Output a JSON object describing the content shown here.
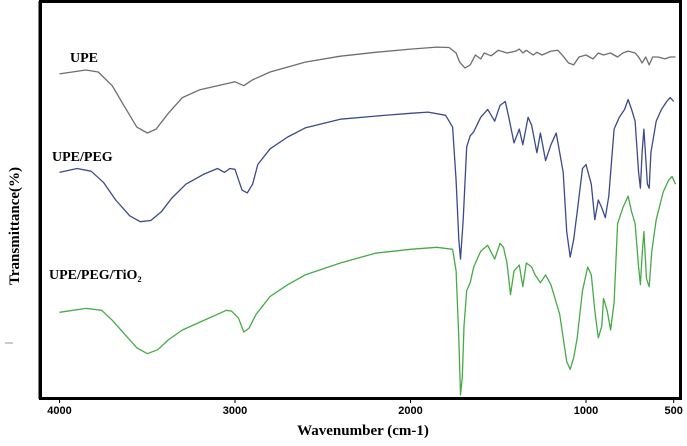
{
  "chart_data": {
    "type": "line",
    "title": "",
    "xlabel": "Wavenumber (cm-1)",
    "ylabel": "Transmittance(%)",
    "x_reversed": true,
    "xlim": [
      4100,
      470
    ],
    "ylim": [
      0,
      100
    ],
    "xticks": [
      {
        "value": 4000,
        "label": "4000"
      },
      {
        "value": 3000,
        "label": "3000"
      },
      {
        "value": 2000,
        "label": "2000"
      },
      {
        "value": 1000,
        "label": "1000"
      },
      {
        "value": 500,
        "label": "500"
      }
    ],
    "grid": false,
    "series": [
      {
        "name": "UPE",
        "color": "#6e6e6e",
        "points": [
          [
            4000,
            82
          ],
          [
            3850,
            83
          ],
          [
            3780,
            82.5
          ],
          [
            3700,
            79
          ],
          [
            3620,
            73
          ],
          [
            3560,
            68.5
          ],
          [
            3500,
            67
          ],
          [
            3450,
            68
          ],
          [
            3380,
            72
          ],
          [
            3300,
            76
          ],
          [
            3200,
            78
          ],
          [
            3100,
            79
          ],
          [
            3000,
            80
          ],
          [
            2950,
            79
          ],
          [
            2900,
            80.5
          ],
          [
            2800,
            82.5
          ],
          [
            2600,
            85
          ],
          [
            2400,
            86.5
          ],
          [
            2200,
            87.5
          ],
          [
            2000,
            88.3
          ],
          [
            1850,
            88.8
          ],
          [
            1780,
            88.7
          ],
          [
            1740,
            87.3
          ],
          [
            1720,
            85
          ],
          [
            1690,
            83.5
          ],
          [
            1660,
            84.3
          ],
          [
            1630,
            86.8
          ],
          [
            1600,
            85.8
          ],
          [
            1580,
            87.3
          ],
          [
            1540,
            86.6
          ],
          [
            1500,
            88
          ],
          [
            1450,
            87.3
          ],
          [
            1400,
            87.8
          ],
          [
            1380,
            88.3
          ],
          [
            1360,
            87.3
          ],
          [
            1340,
            88
          ],
          [
            1300,
            86.8
          ],
          [
            1280,
            87.5
          ],
          [
            1250,
            86.8
          ],
          [
            1200,
            87.8
          ],
          [
            1160,
            88
          ],
          [
            1130,
            86.5
          ],
          [
            1100,
            84.8
          ],
          [
            1070,
            84.3
          ],
          [
            1040,
            86.3
          ],
          [
            1000,
            86.8
          ],
          [
            960,
            85.8
          ],
          [
            930,
            87.3
          ],
          [
            900,
            86.8
          ],
          [
            860,
            87.3
          ],
          [
            820,
            86.3
          ],
          [
            790,
            87.3
          ],
          [
            760,
            87.8
          ],
          [
            720,
            87.3
          ],
          [
            700,
            86.3
          ],
          [
            680,
            84.8
          ],
          [
            660,
            86.3
          ],
          [
            640,
            84.3
          ],
          [
            620,
            86.3
          ],
          [
            590,
            86.3
          ],
          [
            550,
            85.8
          ],
          [
            520,
            86.3
          ],
          [
            490,
            86.3
          ]
        ]
      },
      {
        "name": "UPE/PEG",
        "color": "#3c4a8c",
        "points": [
          [
            4000,
            57
          ],
          [
            3900,
            58
          ],
          [
            3820,
            57.3
          ],
          [
            3750,
            54.5
          ],
          [
            3680,
            50
          ],
          [
            3600,
            46
          ],
          [
            3540,
            44.5
          ],
          [
            3480,
            44.8
          ],
          [
            3420,
            47
          ],
          [
            3360,
            50.5
          ],
          [
            3280,
            54
          ],
          [
            3180,
            56.5
          ],
          [
            3100,
            58
          ],
          [
            3060,
            57
          ],
          [
            3030,
            58
          ],
          [
            3000,
            57.8
          ],
          [
            2960,
            52.5
          ],
          [
            2930,
            51.8
          ],
          [
            2900,
            54
          ],
          [
            2870,
            59
          ],
          [
            2800,
            63
          ],
          [
            2700,
            66
          ],
          [
            2600,
            68.3
          ],
          [
            2400,
            70.5
          ],
          [
            2200,
            71.3
          ],
          [
            2000,
            72
          ],
          [
            1900,
            72.3
          ],
          [
            1800,
            71.5
          ],
          [
            1760,
            68.5
          ],
          [
            1740,
            55
          ],
          [
            1725,
            40
          ],
          [
            1715,
            35
          ],
          [
            1700,
            45
          ],
          [
            1680,
            63.5
          ],
          [
            1660,
            66.3
          ],
          [
            1640,
            67.3
          ],
          [
            1600,
            71
          ],
          [
            1560,
            73
          ],
          [
            1520,
            70
          ],
          [
            1490,
            74
          ],
          [
            1460,
            75
          ],
          [
            1440,
            71
          ],
          [
            1410,
            64.5
          ],
          [
            1380,
            68
          ],
          [
            1360,
            64
          ],
          [
            1330,
            71
          ],
          [
            1310,
            69
          ],
          [
            1280,
            62
          ],
          [
            1260,
            67
          ],
          [
            1230,
            60
          ],
          [
            1200,
            64
          ],
          [
            1170,
            67
          ],
          [
            1130,
            57
          ],
          [
            1110,
            42
          ],
          [
            1090,
            35.5
          ],
          [
            1070,
            40
          ],
          [
            1050,
            47
          ],
          [
            1020,
            58
          ],
          [
            1000,
            59
          ],
          [
            970,
            54
          ],
          [
            950,
            45
          ],
          [
            930,
            50
          ],
          [
            910,
            48
          ],
          [
            890,
            45.5
          ],
          [
            870,
            51
          ],
          [
            840,
            68
          ],
          [
            810,
            71
          ],
          [
            780,
            73
          ],
          [
            760,
            75.5
          ],
          [
            740,
            73
          ],
          [
            720,
            70
          ],
          [
            700,
            57
          ],
          [
            690,
            53
          ],
          [
            680,
            62
          ],
          [
            670,
            68
          ],
          [
            650,
            54
          ],
          [
            640,
            53
          ],
          [
            630,
            62
          ],
          [
            600,
            70
          ],
          [
            570,
            73
          ],
          [
            540,
            75
          ],
          [
            520,
            76
          ],
          [
            500,
            75
          ]
        ]
      },
      {
        "name": "UPE/PEG/TiO₂",
        "color": "#46aa46",
        "points": [
          [
            4000,
            21.5
          ],
          [
            3850,
            22.5
          ],
          [
            3760,
            22
          ],
          [
            3700,
            19.5
          ],
          [
            3620,
            15.5
          ],
          [
            3560,
            12.5
          ],
          [
            3500,
            11
          ],
          [
            3440,
            12
          ],
          [
            3380,
            14.5
          ],
          [
            3300,
            17
          ],
          [
            3200,
            19
          ],
          [
            3100,
            21
          ],
          [
            3050,
            22
          ],
          [
            3020,
            21.8
          ],
          [
            2980,
            20
          ],
          [
            2950,
            16.5
          ],
          [
            2920,
            17.5
          ],
          [
            2880,
            21
          ],
          [
            2800,
            25.5
          ],
          [
            2700,
            28.5
          ],
          [
            2600,
            31
          ],
          [
            2400,
            34
          ],
          [
            2200,
            36.5
          ],
          [
            2000,
            37.5
          ],
          [
            1850,
            38
          ],
          [
            1760,
            37.5
          ],
          [
            1740,
            32
          ],
          [
            1725,
            15
          ],
          [
            1715,
            0.5
          ],
          [
            1705,
            5
          ],
          [
            1695,
            18
          ],
          [
            1680,
            27
          ],
          [
            1660,
            29
          ],
          [
            1640,
            33
          ],
          [
            1600,
            37
          ],
          [
            1560,
            38.5
          ],
          [
            1520,
            35
          ],
          [
            1490,
            39
          ],
          [
            1470,
            38
          ],
          [
            1450,
            34
          ],
          [
            1430,
            26
          ],
          [
            1410,
            32
          ],
          [
            1380,
            33.5
          ],
          [
            1360,
            28
          ],
          [
            1340,
            34
          ],
          [
            1310,
            33
          ],
          [
            1290,
            31
          ],
          [
            1260,
            29
          ],
          [
            1230,
            31
          ],
          [
            1200,
            28.5
          ],
          [
            1150,
            21
          ],
          [
            1110,
            9
          ],
          [
            1090,
            7
          ],
          [
            1070,
            10
          ],
          [
            1050,
            15
          ],
          [
            1020,
            27
          ],
          [
            990,
            33
          ],
          [
            970,
            31
          ],
          [
            950,
            22
          ],
          [
            930,
            15
          ],
          [
            910,
            18
          ],
          [
            900,
            25
          ],
          [
            880,
            22
          ],
          [
            860,
            17
          ],
          [
            840,
            24
          ],
          [
            820,
            44
          ],
          [
            790,
            48
          ],
          [
            760,
            51
          ],
          [
            740,
            47
          ],
          [
            720,
            44
          ],
          [
            700,
            33
          ],
          [
            690,
            28.5
          ],
          [
            680,
            36
          ],
          [
            670,
            42
          ],
          [
            655,
            30
          ],
          [
            640,
            28
          ],
          [
            625,
            37
          ],
          [
            600,
            45
          ],
          [
            560,
            52
          ],
          [
            530,
            55
          ],
          [
            510,
            56
          ],
          [
            490,
            54
          ]
        ]
      }
    ]
  },
  "labels": {
    "upe": "UPE",
    "upe_peg": "UPE/PEG",
    "upe_peg_tio2": "UPE/PEG/TiO₂"
  }
}
